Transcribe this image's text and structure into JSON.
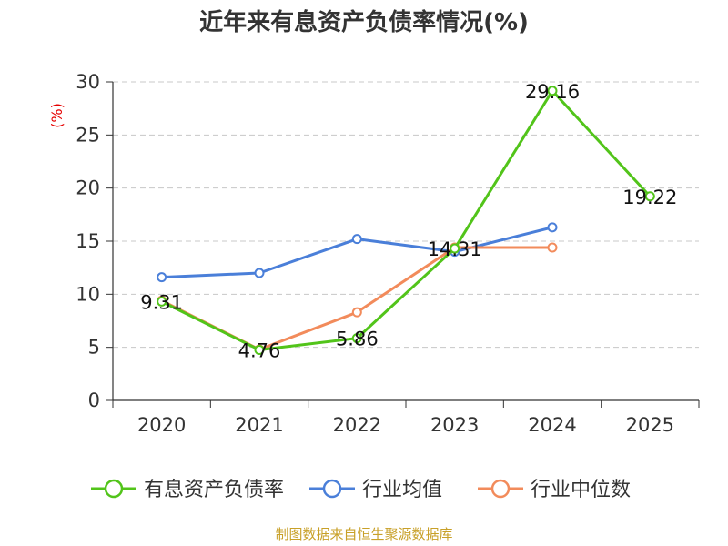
{
  "chart_data": {
    "type": "line",
    "title": "近年来有息资产负债率情况(%)",
    "y_unit": "(%)",
    "categories": [
      "2020",
      "2021",
      "2022",
      "2023",
      "2024",
      "2025"
    ],
    "ylim": [
      0,
      30
    ],
    "y_ticks": [
      "0",
      "5",
      "10",
      "15",
      "20",
      "25",
      "30"
    ],
    "grid": true,
    "legend_position": "bottom",
    "series": [
      {
        "name": "有息资产负债率",
        "color": "#52c41a",
        "values": [
          9.31,
          4.76,
          5.86,
          14.31,
          29.16,
          19.22
        ],
        "labels": [
          "9.31",
          "4.76",
          "5.86",
          "14.31",
          "29.16",
          "19.22"
        ]
      },
      {
        "name": "行业均值",
        "color": "#4a7fd9",
        "values": [
          11.6,
          12.0,
          15.2,
          14.0,
          16.3,
          null
        ]
      },
      {
        "name": "行业中位数",
        "color": "#f28b5b",
        "values": [
          9.4,
          4.8,
          8.3,
          14.4,
          14.4,
          null
        ]
      }
    ],
    "source": "制图数据来自恒生聚源数据库"
  }
}
